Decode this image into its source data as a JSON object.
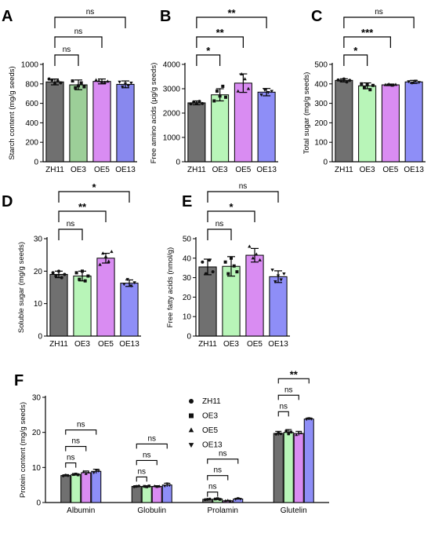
{
  "colors": {
    "ZH11": "#707070",
    "OE3": "#b8f5b8",
    "OE5": "#d98cf2",
    "OE13": "#8e8ef7",
    "OE3_panelA": "#9ccf98",
    "OE13_panelA": "#8888ee"
  },
  "chart_data": [
    {
      "panel": "A",
      "type": "bar",
      "categories": [
        "ZH11",
        "OE3",
        "OE5",
        "OE13"
      ],
      "values": [
        820,
        790,
        825,
        795
      ],
      "errors": [
        30,
        50,
        25,
        35
      ],
      "points": [
        [
          850,
          840,
          800,
          830,
          810
        ],
        [
          830,
          760,
          780,
          810,
          770
        ],
        [
          840,
          830,
          820,
          815,
          825
        ],
        [
          820,
          770,
          800,
          780,
          810
        ]
      ],
      "ylabel": "Starch content (mg/g seeds)",
      "xlabel": "",
      "yticks": [
        "0",
        "200",
        "400",
        "600",
        "800",
        "1000"
      ],
      "ylim": [
        0,
        1000
      ],
      "significance": [
        {
          "from": "ZH11",
          "to": "OE3",
          "label": "ns"
        },
        {
          "from": "ZH11",
          "to": "OE5",
          "label": "ns"
        },
        {
          "from": "ZH11",
          "to": "OE13",
          "label": "ns"
        }
      ]
    },
    {
      "panel": "B",
      "type": "bar",
      "categories": [
        "ZH11",
        "OE3",
        "OE5",
        "OE13"
      ],
      "values": [
        2420,
        2750,
        3230,
        2860
      ],
      "errors": [
        80,
        250,
        380,
        150
      ],
      "points": [
        [
          2380,
          2450,
          2400,
          2480,
          2390
        ],
        [
          2500,
          2900,
          2700,
          3100,
          2650
        ],
        [
          2900,
          3600,
          3400,
          3000
        ],
        [
          2750,
          2950,
          2850,
          2900
        ]
      ],
      "ylabel": "Free amino acids (μg/g seeds)",
      "xlabel": "",
      "yticks": [
        "0",
        "1000",
        "2000",
        "3000",
        "4000"
      ],
      "ylim": [
        0,
        4000
      ],
      "significance": [
        {
          "from": "ZH11",
          "to": "OE3",
          "label": "*"
        },
        {
          "from": "ZH11",
          "to": "OE5",
          "label": "**"
        },
        {
          "from": "ZH11",
          "to": "OE13",
          "label": "**"
        }
      ]
    },
    {
      "panel": "C",
      "type": "bar",
      "categories": [
        "ZH11",
        "OE3",
        "OE5",
        "OE13"
      ],
      "values": [
        418,
        390,
        395,
        410
      ],
      "errors": [
        8,
        15,
        4,
        8
      ],
      "points": [
        [
          420,
          415,
          425,
          410,
          418
        ],
        [
          400,
          380,
          395,
          370,
          392
        ],
        [
          395,
          398,
          392,
          396
        ],
        [
          412,
          405,
          415,
          408
        ]
      ],
      "ylabel": "Total sugar (mg/g seeds)",
      "xlabel": "",
      "yticks": [
        "0",
        "100",
        "200",
        "300",
        "400",
        "500"
      ],
      "ylim": [
        0,
        500
      ],
      "significance": [
        {
          "from": "ZH11",
          "to": "OE3",
          "label": "*"
        },
        {
          "from": "ZH11",
          "to": "OE5",
          "label": "***"
        },
        {
          "from": "ZH11",
          "to": "OE13",
          "label": "ns"
        }
      ]
    },
    {
      "panel": "D",
      "type": "bar",
      "categories": [
        "ZH11",
        "OE3",
        "OE5",
        "OE13"
      ],
      "values": [
        19.0,
        18.5,
        24.0,
        16.3
      ],
      "errors": [
        1.0,
        1.5,
        1.5,
        1.0
      ],
      "points": [
        [
          19.5,
          18.5,
          20.0,
          18.0,
          19.0
        ],
        [
          19.5,
          17.5,
          20.0,
          17.0,
          18.5
        ],
        [
          22.0,
          25.5,
          24.5,
          23.0,
          26.0
        ],
        [
          16.0,
          17.5,
          15.5,
          16.5
        ]
      ],
      "ylabel": "Soluble sugar (mg/g seeds)",
      "xlabel": "",
      "yticks": [
        "0",
        "10",
        "20",
        "30"
      ],
      "ylim": [
        0,
        30
      ],
      "significance": [
        {
          "from": "ZH11",
          "to": "OE3",
          "label": "ns"
        },
        {
          "from": "ZH11",
          "to": "OE5",
          "label": "**"
        },
        {
          "from": "ZH11",
          "to": "OE13",
          "label": "*"
        }
      ]
    },
    {
      "panel": "E",
      "type": "bar",
      "categories": [
        "ZH11",
        "OE3",
        "OE5",
        "OE13"
      ],
      "values": [
        35.5,
        35.8,
        41.5,
        30.5
      ],
      "errors": [
        4.0,
        5.0,
        3.5,
        3.0
      ],
      "points": [
        [
          38,
          32,
          39,
          33
        ],
        [
          38,
          32,
          40,
          36,
          33
        ],
        [
          46,
          40,
          42,
          39
        ],
        [
          34,
          28,
          31,
          29,
          32
        ]
      ],
      "ylabel": "Free fatty acids (nmol/g)",
      "xlabel": "",
      "yticks": [
        "0",
        "10",
        "20",
        "30",
        "40",
        "50"
      ],
      "ylim": [
        0,
        50
      ],
      "significance": [
        {
          "from": "ZH11",
          "to": "OE3",
          "label": "ns"
        },
        {
          "from": "ZH11",
          "to": "OE5",
          "label": "*"
        },
        {
          "from": "ZH11",
          "to": "OE13",
          "label": "ns"
        }
      ]
    },
    {
      "panel": "F",
      "type": "bar",
      "categories": [
        "Albumin",
        "Globulin",
        "Prolamin",
        "Glutelin"
      ],
      "series": [
        {
          "name": "ZH11",
          "values": [
            7.7,
            4.6,
            0.9,
            19.7
          ],
          "errors": [
            0.2,
            0.2,
            0.15,
            0.6
          ],
          "points": [
            [
              7.6,
              7.8,
              7.7
            ],
            [
              4.5,
              4.6,
              4.7
            ],
            [
              0.8,
              0.9,
              1.0
            ],
            [
              19.5,
              19.9,
              19.6
            ]
          ]
        },
        {
          "name": "OE3",
          "values": [
            8.0,
            4.6,
            1.0,
            20.0
          ],
          "errors": [
            0.2,
            0.2,
            0.1,
            0.8
          ],
          "points": [
            [
              8.0,
              8.1,
              7.9
            ],
            [
              4.6,
              4.5,
              4.7
            ],
            [
              1.0,
              1.1,
              0.9
            ],
            [
              20.3,
              19.6,
              20.1
            ]
          ]
        },
        {
          "name": "OE5",
          "values": [
            8.5,
            4.6,
            0.5,
            19.7
          ],
          "errors": [
            0.5,
            0.2,
            0.1,
            0.6
          ],
          "points": [
            [
              8.8,
              8.2,
              8.6
            ],
            [
              4.7,
              4.5,
              4.6
            ],
            [
              0.5,
              0.6,
              0.4
            ],
            [
              19.3,
              19.9,
              19.8
            ]
          ]
        },
        {
          "name": "OE13",
          "values": [
            8.9,
            5.0,
            1.0,
            23.8
          ],
          "errors": [
            0.6,
            0.5,
            0.2,
            0.3
          ],
          "points": [
            [
              8.5,
              9.2,
              9.0
            ],
            [
              4.7,
              5.4,
              4.9
            ],
            [
              0.9,
              1.2,
              1.0
            ],
            [
              23.7,
              24.0,
              23.8
            ]
          ]
        }
      ],
      "ylabel": "Protein content (mg/g seeds)",
      "xlabel": "",
      "yticks": [
        "0",
        "10",
        "20",
        "30"
      ],
      "ylim": [
        0,
        30
      ],
      "legend": {
        "placement": "inside-top-center",
        "markers": [
          "circle",
          "square",
          "triangle-up",
          "triangle-down"
        ]
      },
      "significance": [
        {
          "group": "Albumin",
          "from": "ZH11",
          "to": "OE3",
          "label": "ns"
        },
        {
          "group": "Albumin",
          "from": "ZH11",
          "to": "OE5",
          "label": "ns"
        },
        {
          "group": "Albumin",
          "from": "ZH11",
          "to": "OE13",
          "label": "ns"
        },
        {
          "group": "Globulin",
          "from": "ZH11",
          "to": "OE3",
          "label": "ns"
        },
        {
          "group": "Globulin",
          "from": "ZH11",
          "to": "OE5",
          "label": "ns"
        },
        {
          "group": "Globulin",
          "from": "ZH11",
          "to": "OE13",
          "label": "ns"
        },
        {
          "group": "Prolamin",
          "from": "ZH11",
          "to": "OE3",
          "label": "ns"
        },
        {
          "group": "Prolamin",
          "from": "ZH11",
          "to": "OE5",
          "label": "ns"
        },
        {
          "group": "Prolamin",
          "from": "ZH11",
          "to": "OE13",
          "label": "ns"
        },
        {
          "group": "Glutelin",
          "from": "ZH11",
          "to": "OE3",
          "label": "ns"
        },
        {
          "group": "Glutelin",
          "from": "ZH11",
          "to": "OE5",
          "label": "ns"
        },
        {
          "group": "Glutelin",
          "from": "ZH11",
          "to": "OE13",
          "label": "**"
        }
      ]
    }
  ]
}
